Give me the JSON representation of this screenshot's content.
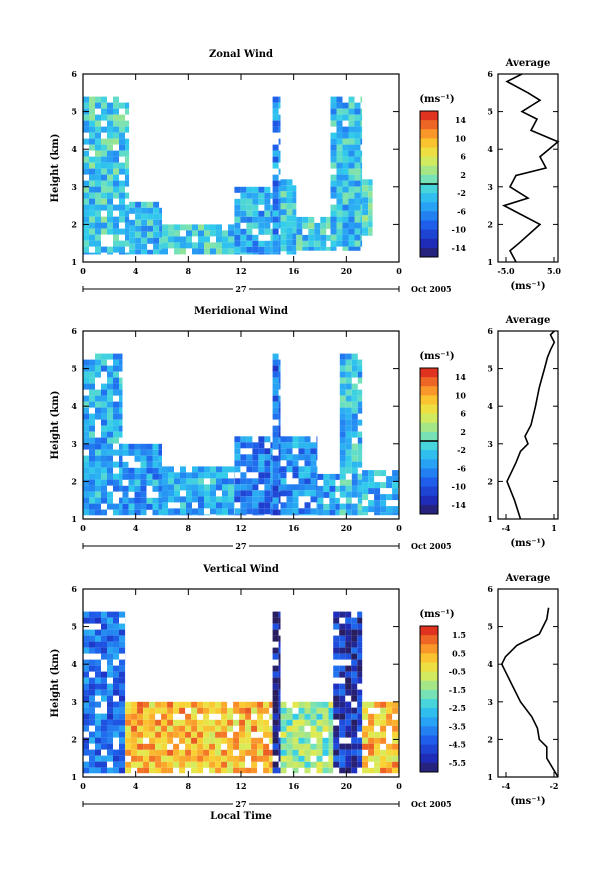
{
  "figure": {
    "date_label": "Oct 2005",
    "day_label": "27",
    "xlabel_bottom": "Local Time"
  },
  "chart_data": [
    {
      "type": "heatmap",
      "title": "Zonal Wind",
      "ylabel": "Height (km)",
      "xlabel": "",
      "xlim": [
        0,
        24
      ],
      "ylim": [
        1,
        6
      ],
      "xticks": [
        "0",
        "4",
        "8",
        "12",
        "16",
        "20",
        "0"
      ],
      "yticks": [
        "1",
        "2",
        "3",
        "4",
        "5",
        "6"
      ],
      "colorbar": {
        "label": "(ms⁻¹)",
        "ticks": [
          "14",
          "10",
          "6",
          "2",
          "-2",
          "-6",
          "-10",
          "-14"
        ],
        "range": [
          -16,
          16
        ],
        "zero_line": true
      },
      "data_regions": [
        {
          "x": [
            0.0,
            3.5
          ],
          "y": [
            1.2,
            5.4
          ],
          "mean": -2
        },
        {
          "x": [
            3.5,
            6.0
          ],
          "y": [
            1.2,
            2.6
          ],
          "mean": -3
        },
        {
          "x": [
            6.0,
            11.5
          ],
          "y": [
            1.2,
            2.0
          ],
          "mean": -2
        },
        {
          "x": [
            11.5,
            14.4
          ],
          "y": [
            1.2,
            3.0
          ],
          "mean": -4
        },
        {
          "x": [
            14.4,
            15.0
          ],
          "y": [
            1.2,
            5.4
          ],
          "mean": -6
        },
        {
          "x": [
            15.0,
            16.2
          ],
          "y": [
            1.2,
            3.2
          ],
          "mean": -2
        },
        {
          "x": [
            16.2,
            19.0
          ],
          "y": [
            1.3,
            2.2
          ],
          "mean": -2
        },
        {
          "x": [
            18.8,
            21.2
          ],
          "y": [
            1.3,
            5.4
          ],
          "mean": -3
        },
        {
          "x": [
            21.2,
            22.0
          ],
          "y": [
            1.7,
            3.2
          ],
          "mean": -1
        }
      ]
    },
    {
      "type": "heatmap",
      "title": "Meridional Wind",
      "ylabel": "Height (km)",
      "xlabel": "",
      "xlim": [
        0,
        24
      ],
      "ylim": [
        1,
        6
      ],
      "xticks": [
        "0",
        "4",
        "8",
        "12",
        "16",
        "20",
        "0"
      ],
      "yticks": [
        "1",
        "2",
        "3",
        "4",
        "5",
        "6"
      ],
      "colorbar": {
        "label": "(ms⁻¹)",
        "ticks": [
          "14",
          "10",
          "6",
          "2",
          "-2",
          "-6",
          "-10",
          "-14"
        ],
        "range": [
          -16,
          16
        ],
        "zero_line": true
      },
      "data_regions": [
        {
          "x": [
            0.0,
            3.0
          ],
          "y": [
            1.1,
            5.4
          ],
          "mean": -4
        },
        {
          "x": [
            3.0,
            6.0
          ],
          "y": [
            1.1,
            3.0
          ],
          "mean": -5
        },
        {
          "x": [
            6.0,
            11.5
          ],
          "y": [
            1.1,
            2.4
          ],
          "mean": -4
        },
        {
          "x": [
            11.5,
            14.4
          ],
          "y": [
            1.1,
            3.2
          ],
          "mean": -7
        },
        {
          "x": [
            14.4,
            15.0
          ],
          "y": [
            1.1,
            5.4
          ],
          "mean": -8
        },
        {
          "x": [
            15.0,
            17.8
          ],
          "y": [
            1.1,
            3.2
          ],
          "mean": -6
        },
        {
          "x": [
            17.8,
            19.5
          ],
          "y": [
            1.1,
            2.2
          ],
          "mean": -5
        },
        {
          "x": [
            19.5,
            21.2
          ],
          "y": [
            1.1,
            5.4
          ],
          "mean": -3
        },
        {
          "x": [
            21.2,
            24.0
          ],
          "y": [
            1.1,
            2.3
          ],
          "mean": -4
        }
      ]
    },
    {
      "type": "heatmap",
      "title": "Vertical Wind",
      "ylabel": "Height (km)",
      "xlabel": "Local Time",
      "xlim": [
        0,
        24
      ],
      "ylim": [
        1,
        6
      ],
      "xticks": [
        "0",
        "4",
        "8",
        "12",
        "16",
        "20",
        "0"
      ],
      "yticks": [
        "1",
        "2",
        "3",
        "4",
        "5",
        "6"
      ],
      "colorbar": {
        "label": "(ms⁻¹)",
        "ticks": [
          "1.5",
          "0.5",
          "-0.5",
          "-1.5",
          "-2.5",
          "-3.5",
          "-4.5",
          "-5.5"
        ],
        "range": [
          -6,
          2
        ],
        "zero_line": false
      },
      "data_regions": [
        {
          "x": [
            0.0,
            3.2
          ],
          "y": [
            1.1,
            5.4
          ],
          "mean": -4.0
        },
        {
          "x": [
            3.2,
            14.4
          ],
          "y": [
            1.1,
            3.0
          ],
          "mean": 0.3
        },
        {
          "x": [
            14.4,
            15.0
          ],
          "y": [
            1.1,
            5.4
          ],
          "mean": -5.5
        },
        {
          "x": [
            15.0,
            19.0
          ],
          "y": [
            1.1,
            3.0
          ],
          "mean": -1.5
        },
        {
          "x": [
            19.0,
            21.2
          ],
          "y": [
            1.1,
            5.4
          ],
          "mean": -5.0
        },
        {
          "x": [
            21.2,
            24.0
          ],
          "y": [
            1.1,
            3.0
          ],
          "mean": 0.2
        }
      ]
    },
    {
      "type": "line",
      "title": "Average",
      "xlabel": "(ms⁻¹)",
      "ylabel": "",
      "xlim": [
        -5,
        5
      ],
      "ylim": [
        1,
        6
      ],
      "xticks": [
        "-5.0",
        "5.0"
      ],
      "yticks": [
        "1",
        "2",
        "3",
        "4",
        "5",
        "6"
      ],
      "x": [
        -2.0,
        -3.0,
        -1.5,
        2.0,
        -4.0,
        0.0,
        -3.0,
        -2.0,
        3.0,
        2.0,
        5.0,
        0.5,
        1.5,
        -1.0,
        2.0,
        0.0,
        -3.5,
        -1.0
      ],
      "y": [
        1.0,
        1.3,
        1.5,
        2.0,
        2.5,
        2.7,
        3.0,
        3.3,
        3.5,
        3.8,
        4.2,
        4.5,
        4.8,
        5.0,
        5.3,
        5.5,
        5.8,
        6.0
      ]
    },
    {
      "type": "line",
      "title": "Average",
      "xlabel": "(ms⁻¹)",
      "ylabel": "",
      "xlim": [
        -6,
        2
      ],
      "ylim": [
        1,
        6
      ],
      "xticks": [
        "-4",
        "1"
      ],
      "yticks": [
        "1",
        "2",
        "3",
        "4",
        "5",
        "6"
      ],
      "x": [
        -3.0,
        -3.8,
        -4.8,
        -3.6,
        -3.0,
        -2.0,
        -2.4,
        -1.6,
        -1.0,
        -0.5,
        0.2,
        0.6,
        1.0,
        1.5,
        1.0,
        1.5
      ],
      "y": [
        1.0,
        1.5,
        2.0,
        2.5,
        2.8,
        3.0,
        3.2,
        3.5,
        4.0,
        4.5,
        5.0,
        5.3,
        5.5,
        5.7,
        5.9,
        6.0
      ]
    },
    {
      "type": "line",
      "title": "Average",
      "xlabel": "(ms⁻¹)",
      "ylabel": "",
      "xlim": [
        -4.2,
        -1.0
      ],
      "ylim": [
        1,
        6
      ],
      "xticks": [
        "-4",
        "-2"
      ],
      "yticks": [
        "1",
        "2",
        "3",
        "4",
        "5",
        "6"
      ],
      "x": [
        -1.0,
        -1.6,
        -1.6,
        -2.0,
        -2.1,
        -2.4,
        -3.0,
        -3.5,
        -4.0,
        -3.8,
        -3.2,
        -2.0,
        -1.6,
        -1.5
      ],
      "y": [
        1.0,
        1.5,
        1.8,
        2.0,
        2.3,
        2.6,
        3.0,
        3.5,
        4.0,
        4.2,
        4.5,
        4.8,
        5.2,
        5.5
      ]
    }
  ]
}
